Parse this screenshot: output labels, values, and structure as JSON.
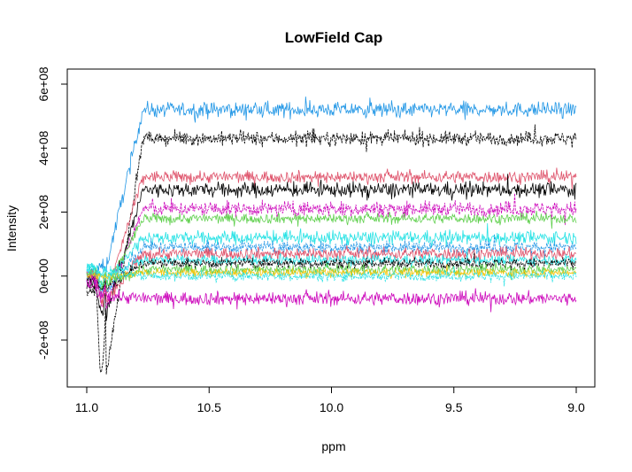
{
  "chart_data": {
    "type": "line",
    "title": "LowField Cap",
    "xlabel": "ppm",
    "ylabel": "Intensity",
    "xlim": [
      11.0,
      9.0
    ],
    "ylim": [
      -200000000,
      600000000
    ],
    "x_reversed": true,
    "x_ticks": [
      11.0,
      10.5,
      10.0,
      9.5,
      9.0
    ],
    "x_tick_labels": [
      "11.0",
      "10.5",
      "10.0",
      "9.5",
      "9.0"
    ],
    "y_ticks": [
      -200000000,
      0,
      200000000,
      400000000,
      600000000
    ],
    "y_tick_labels": [
      "-2e+08",
      "0e+00",
      "2e+08",
      "4e+08",
      "6e+08"
    ],
    "grid": false,
    "legend": "none",
    "series": [
      {
        "color": "#2297E6",
        "start": 10000000,
        "plateau": 520000000,
        "noise": 22000000,
        "dip": 30000000
      },
      {
        "color": "#000000",
        "start": -50000000,
        "plateau": 430000000,
        "noise": 20000000,
        "dip": -300000000
      },
      {
        "color": "#DF536B",
        "start": 0,
        "plateau": 310000000,
        "noise": 18000000,
        "dip": -60000000
      },
      {
        "color": "#000000",
        "start": -20000000,
        "plateau": 270000000,
        "noise": 22000000,
        "dip": -120000000
      },
      {
        "color": "#CD0BBC",
        "start": -30000000,
        "plateau": 210000000,
        "noise": 22000000,
        "dip": -80000000
      },
      {
        "color": "#61D04F",
        "start": 0,
        "plateau": 180000000,
        "noise": 15000000,
        "dip": -40000000
      },
      {
        "color": "#28E2E5",
        "start": 20000000,
        "plateau": 120000000,
        "noise": 20000000,
        "dip": -20000000
      },
      {
        "color": "#2297E6",
        "start": 0,
        "plateau": 90000000,
        "noise": 18000000,
        "dip": -50000000
      },
      {
        "color": "#DF536B",
        "start": 0,
        "plateau": 70000000,
        "noise": 18000000,
        "dip": -80000000
      },
      {
        "color": "#28E2E5",
        "start": 30000000,
        "plateau": 50000000,
        "noise": 15000000,
        "dip": 0
      },
      {
        "color": "#000000",
        "start": -10000000,
        "plateau": 40000000,
        "noise": 15000000,
        "dip": -40000000
      },
      {
        "color": "#61D04F",
        "start": 10000000,
        "plateau": 20000000,
        "noise": 15000000,
        "dip": -20000000
      },
      {
        "color": "#F5C710",
        "start": 0,
        "plateau": 10000000,
        "noise": 12000000,
        "dip": 0
      },
      {
        "color": "#28E2E5",
        "start": 20000000,
        "plateau": 0,
        "noise": 14000000,
        "dip": 10000000
      },
      {
        "color": "#CD0BBC",
        "start": -20000000,
        "plateau": -70000000,
        "noise": 20000000,
        "dip": -60000000
      }
    ]
  }
}
